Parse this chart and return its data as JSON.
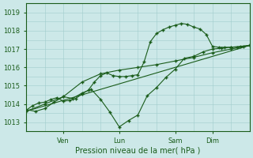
{
  "bg_color": "#cce8e8",
  "grid_color": "#a0cccc",
  "line_color": "#1a5c1a",
  "xlabel": "Pression niveau de la mer( hPa )",
  "ylabel_ticks": [
    1013,
    1014,
    1015,
    1016,
    1017,
    1018,
    1019
  ],
  "ylim": [
    1012.5,
    1019.2
  ],
  "xlim": [
    0,
    72
  ],
  "xtick_positions": [
    12,
    30,
    48,
    60
  ],
  "xtick_labels": [
    "Ven",
    "Lun",
    "Sam",
    "Dim"
  ],
  "line1_x": [
    0,
    2,
    4,
    6,
    8,
    10,
    12,
    14,
    16,
    18,
    20,
    22,
    24,
    26,
    28,
    30,
    32,
    34,
    36,
    38,
    40,
    42,
    44,
    46,
    48,
    50,
    52,
    54,
    56,
    58,
    60,
    62,
    64,
    66,
    68,
    70,
    72
  ],
  "vals1": [
    1013.65,
    1013.9,
    1014.05,
    1014.1,
    1014.25,
    1014.35,
    1014.15,
    1014.2,
    1014.3,
    1014.55,
    1014.75,
    1015.2,
    1015.55,
    1015.7,
    1015.55,
    1015.5,
    1015.5,
    1015.55,
    1015.6,
    1016.3,
    1017.4,
    1017.85,
    1018.05,
    1018.2,
    1018.3,
    1018.4,
    1018.35,
    1018.2,
    1018.1,
    1017.8,
    1017.15,
    1017.1,
    1017.1,
    1017.1,
    1017.1,
    1017.15,
    1017.2
  ],
  "line2_x": [
    0,
    3,
    6,
    9,
    12,
    15,
    18,
    21,
    24,
    27,
    30,
    33,
    36,
    39,
    42,
    45,
    48,
    51,
    54,
    57,
    60,
    63,
    66,
    69,
    72
  ],
  "vals2": [
    1013.7,
    1013.6,
    1013.75,
    1014.1,
    1014.4,
    1014.3,
    1014.6,
    1014.8,
    1014.25,
    1013.55,
    1012.75,
    1013.1,
    1013.4,
    1014.45,
    1014.9,
    1015.45,
    1015.9,
    1016.5,
    1016.6,
    1016.85,
    1017.0,
    1017.05,
    1017.1,
    1017.15,
    1017.2
  ],
  "line3_x": [
    0,
    6,
    12,
    18,
    24,
    30,
    36,
    42,
    48,
    54,
    60,
    66,
    72
  ],
  "vals3": [
    1013.6,
    1014.0,
    1014.4,
    1015.2,
    1015.65,
    1015.85,
    1016.0,
    1016.15,
    1016.35,
    1016.55,
    1016.8,
    1017.0,
    1017.2
  ],
  "line4_x": [
    0,
    72
  ],
  "vals4": [
    1013.6,
    1017.2
  ]
}
